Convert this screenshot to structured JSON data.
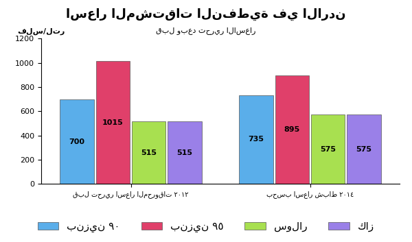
{
  "chart_data": {
    "type": "bar",
    "title": "اسعار المشتقات النفطية في الاردن",
    "subtitle": "قبل وبعد تحرير الاسعار",
    "y_label": "فلس/لتر",
    "categories": [
      "قبل تحرير اسعار المحروقات ٢٠١٢",
      "بحسب اسعار شباط ٢٠١٤"
    ],
    "series": [
      {
        "name": "بنزين ٩٠",
        "color": "#5aaeea",
        "values": [
          700,
          735
        ]
      },
      {
        "name": "بنزين ٩٥",
        "color": "#e0406a",
        "values": [
          1015,
          895
        ]
      },
      {
        "name": "سولار",
        "color": "#a8e050",
        "values": [
          515,
          575
        ]
      },
      {
        "name": "كاز",
        "color": "#9a80e8",
        "values": [
          515,
          575
        ]
      }
    ],
    "ylim": [
      0,
      1200
    ],
    "yticks": [
      0,
      200,
      400,
      600,
      800,
      1000,
      1200
    ],
    "grid": false,
    "legend": "lower center",
    "data_labels": true
  }
}
